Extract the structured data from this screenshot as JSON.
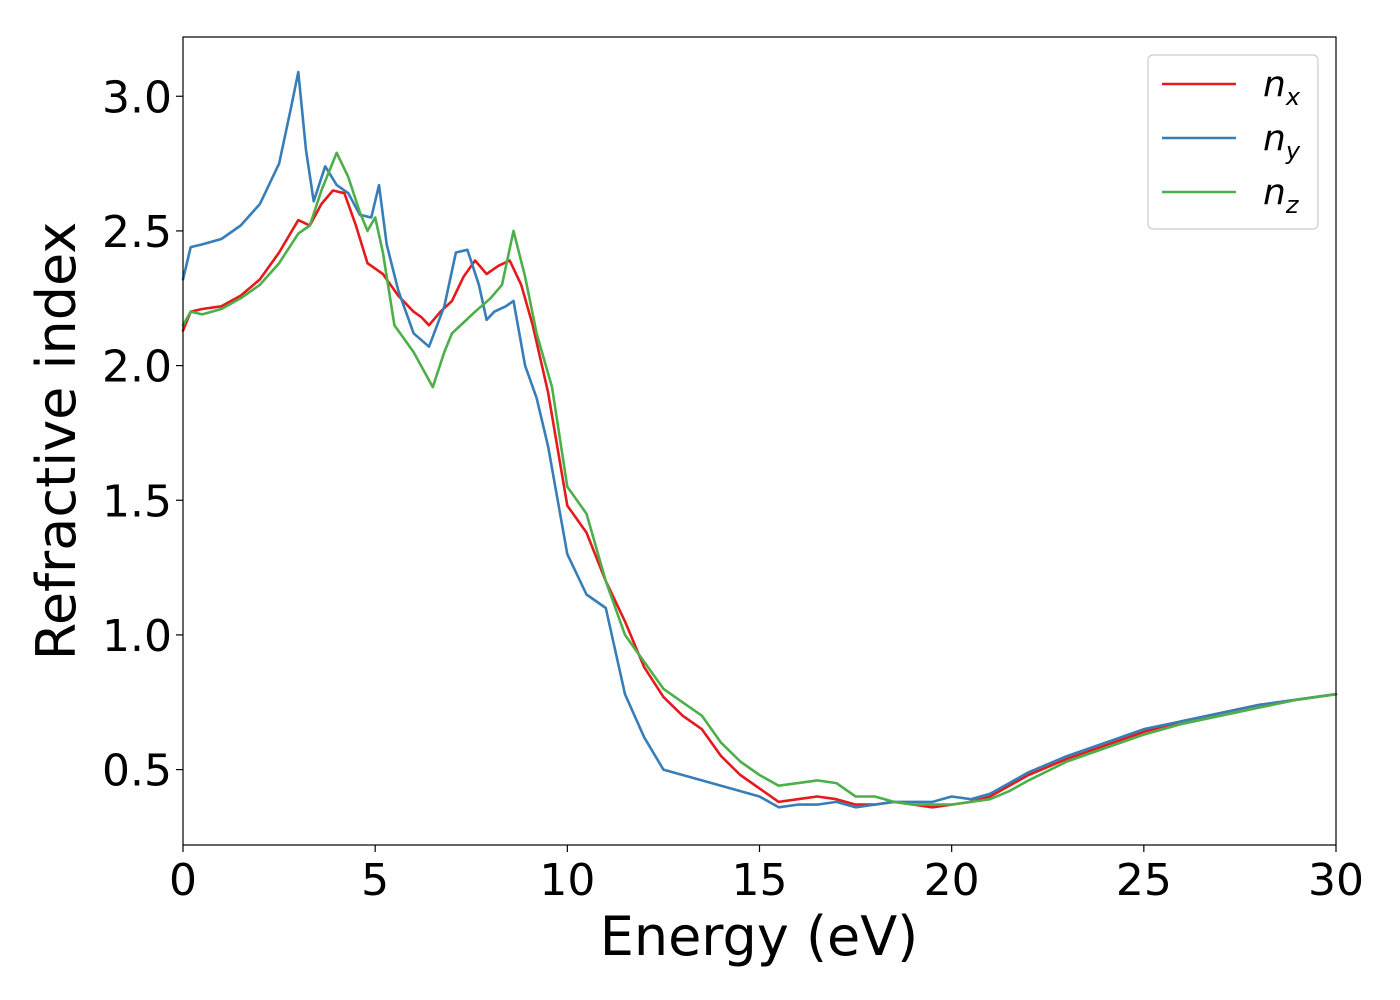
{
  "chart_data": {
    "type": "line",
    "title": "",
    "xlabel": "Energy (eV)",
    "ylabel": "Refractive index",
    "xlim": [
      0,
      30
    ],
    "ylim": [
      0.22,
      3.22
    ],
    "xticks": [
      0,
      5,
      10,
      15,
      20,
      25,
      30
    ],
    "xtick_labels": [
      "0",
      "5",
      "10",
      "15",
      "20",
      "25",
      "30"
    ],
    "yticks": [
      0.5,
      1.0,
      1.5,
      2.0,
      2.5,
      3.0
    ],
    "ytick_labels": [
      "0.5",
      "1.0",
      "1.5",
      "2.0",
      "2.5",
      "3.0"
    ],
    "grid": false,
    "legend_position": "top-right",
    "series": [
      {
        "name": "n_x",
        "label_main": "n",
        "label_sub": "x",
        "color": "#e41a1c",
        "x": [
          0,
          0.2,
          0.5,
          1,
          1.5,
          2,
          2.5,
          3,
          3.3,
          3.6,
          3.9,
          4.2,
          4.5,
          4.8,
          5.2,
          5.6,
          6,
          6.2,
          6.4,
          6.7,
          7,
          7.3,
          7.6,
          7.9,
          8.2,
          8.5,
          8.8,
          9.1,
          9.5,
          10,
          10.5,
          11,
          11.5,
          12,
          12.5,
          13,
          13.5,
          14,
          14.5,
          15,
          15.5,
          16,
          16.5,
          17,
          17.5,
          18,
          18.5,
          19,
          19.5,
          20,
          20.5,
          21,
          21.5,
          22,
          22.5,
          23,
          24,
          25,
          26,
          27,
          28,
          29,
          30
        ],
        "y": [
          2.13,
          2.2,
          2.21,
          2.22,
          2.26,
          2.32,
          2.42,
          2.54,
          2.52,
          2.6,
          2.65,
          2.64,
          2.52,
          2.38,
          2.34,
          2.26,
          2.2,
          2.18,
          2.15,
          2.2,
          2.24,
          2.33,
          2.39,
          2.34,
          2.37,
          2.39,
          2.3,
          2.15,
          1.9,
          1.48,
          1.38,
          1.2,
          1.05,
          0.88,
          0.77,
          0.7,
          0.65,
          0.55,
          0.48,
          0.43,
          0.38,
          0.39,
          0.4,
          0.39,
          0.37,
          0.37,
          0.38,
          0.37,
          0.36,
          0.37,
          0.38,
          0.4,
          0.44,
          0.48,
          0.51,
          0.54,
          0.59,
          0.64,
          0.68,
          0.71,
          0.74,
          0.76,
          0.78
        ]
      },
      {
        "name": "n_y",
        "label_main": "n",
        "label_sub": "y",
        "color": "#377eb8",
        "x": [
          0,
          0.2,
          0.5,
          1,
          1.5,
          2,
          2.5,
          2.8,
          3,
          3.2,
          3.4,
          3.7,
          4,
          4.3,
          4.6,
          4.9,
          5.1,
          5.3,
          5.6,
          6,
          6.4,
          6.8,
          7.1,
          7.4,
          7.7,
          7.9,
          8.1,
          8.4,
          8.6,
          8.9,
          9.2,
          9.5,
          10,
          10.5,
          11,
          11.5,
          12,
          12.5,
          13,
          13.5,
          14,
          14.5,
          15,
          15.5,
          16,
          16.5,
          17,
          17.5,
          18,
          18.5,
          19,
          19.5,
          20,
          20.5,
          21,
          21.5,
          22,
          22.5,
          23,
          24,
          25,
          26,
          27,
          28,
          29,
          30
        ],
        "y": [
          2.32,
          2.44,
          2.45,
          2.47,
          2.52,
          2.6,
          2.75,
          2.95,
          3.09,
          2.8,
          2.61,
          2.74,
          2.67,
          2.64,
          2.56,
          2.55,
          2.67,
          2.45,
          2.28,
          2.12,
          2.07,
          2.22,
          2.42,
          2.43,
          2.3,
          2.17,
          2.2,
          2.22,
          2.24,
          2.0,
          1.88,
          1.7,
          1.3,
          1.15,
          1.1,
          0.78,
          0.62,
          0.5,
          0.48,
          0.46,
          0.44,
          0.42,
          0.4,
          0.36,
          0.37,
          0.37,
          0.38,
          0.36,
          0.37,
          0.38,
          0.38,
          0.38,
          0.4,
          0.39,
          0.41,
          0.45,
          0.49,
          0.52,
          0.55,
          0.6,
          0.65,
          0.68,
          0.71,
          0.74,
          0.76,
          0.78
        ]
      },
      {
        "name": "n_z",
        "label_main": "n",
        "label_sub": "z",
        "color": "#4daf4a",
        "x": [
          0,
          0.2,
          0.5,
          1,
          1.5,
          2,
          2.5,
          3,
          3.3,
          3.6,
          4,
          4.3,
          4.6,
          4.8,
          5,
          5.2,
          5.5,
          6,
          6.5,
          6.8,
          7,
          7.3,
          7.6,
          8,
          8.3,
          8.6,
          8.9,
          9.2,
          9.6,
          10,
          10.5,
          11,
          11.5,
          12,
          12.5,
          13,
          13.5,
          14,
          14.5,
          15,
          15.5,
          16,
          16.5,
          17,
          17.5,
          18,
          18.5,
          19,
          19.5,
          20,
          20.5,
          21,
          21.5,
          22,
          23,
          24,
          25,
          26,
          27,
          28,
          29,
          30
        ],
        "y": [
          2.15,
          2.2,
          2.19,
          2.21,
          2.25,
          2.3,
          2.38,
          2.49,
          2.52,
          2.65,
          2.79,
          2.7,
          2.57,
          2.5,
          2.55,
          2.42,
          2.15,
          2.05,
          1.92,
          2.05,
          2.12,
          2.16,
          2.2,
          2.25,
          2.3,
          2.5,
          2.33,
          2.12,
          1.92,
          1.55,
          1.45,
          1.2,
          1.0,
          0.9,
          0.8,
          0.75,
          0.7,
          0.6,
          0.53,
          0.48,
          0.44,
          0.45,
          0.46,
          0.45,
          0.4,
          0.4,
          0.38,
          0.37,
          0.37,
          0.37,
          0.38,
          0.39,
          0.42,
          0.46,
          0.53,
          0.58,
          0.63,
          0.67,
          0.7,
          0.73,
          0.76,
          0.78
        ]
      }
    ]
  }
}
